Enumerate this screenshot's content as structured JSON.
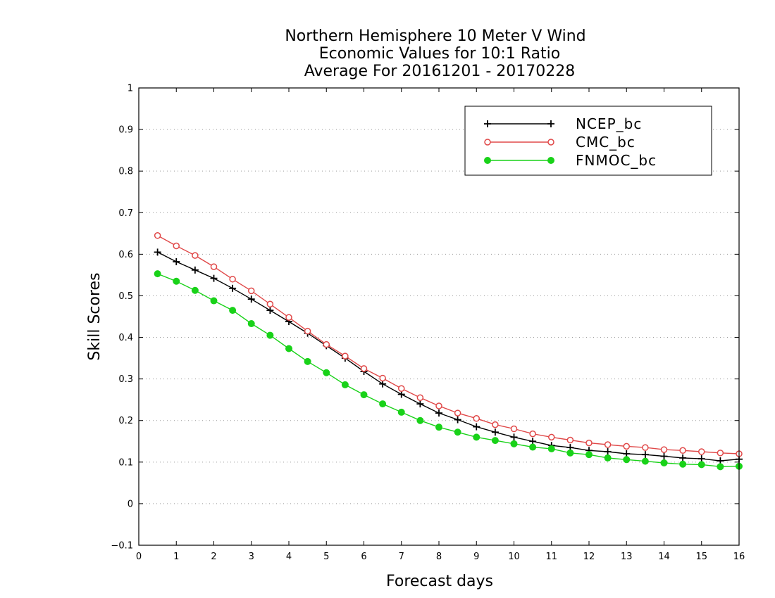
{
  "chart_data": {
    "type": "line",
    "title": [
      "Northern Hemisphere 10 Meter V Wind",
      "Economic Values for 10:1 Ratio",
      "Average For 20161201 - 20170228"
    ],
    "xlabel": "Forecast days",
    "ylabel": "Skill Scores",
    "xlim": [
      0,
      16
    ],
    "ylim": [
      -0.1,
      1
    ],
    "xticks": [
      0,
      1,
      2,
      3,
      4,
      5,
      6,
      7,
      8,
      9,
      10,
      11,
      12,
      13,
      14,
      15,
      16
    ],
    "yticks": [
      -0.1,
      0,
      0.1,
      0.2,
      0.3,
      0.4,
      0.5,
      0.6,
      0.7,
      0.8,
      0.9,
      1
    ],
    "ytick_labels": [
      "−0.1",
      "0",
      "0.1",
      "0.2",
      "0.3",
      "0.4",
      "0.5",
      "0.6",
      "0.7",
      "0.8",
      "0.9",
      "1"
    ],
    "grid": true,
    "legend_position": "top-right",
    "x": [
      0.5,
      1,
      1.5,
      2,
      2.5,
      3,
      3.5,
      4,
      4.5,
      5,
      5.5,
      6,
      6.5,
      7,
      7.5,
      8,
      8.5,
      9,
      9.5,
      10,
      10.5,
      11,
      11.5,
      12,
      12.5,
      13,
      13.5,
      14,
      14.5,
      15,
      15.5,
      16
    ],
    "series": [
      {
        "name": "NCEP_bc",
        "color": "#000000",
        "marker": "plus",
        "values": [
          0.605,
          0.582,
          0.562,
          0.542,
          0.518,
          0.492,
          0.465,
          0.438,
          0.41,
          0.38,
          0.35,
          0.318,
          0.288,
          0.263,
          0.24,
          0.218,
          0.202,
          0.185,
          0.172,
          0.16,
          0.15,
          0.14,
          0.135,
          0.128,
          0.125,
          0.12,
          0.118,
          0.114,
          0.11,
          0.108,
          0.103,
          0.107
        ]
      },
      {
        "name": "CMC_bc",
        "color": "#e04848",
        "marker": "open-circle",
        "values": [
          0.645,
          0.62,
          0.597,
          0.57,
          0.54,
          0.512,
          0.48,
          0.448,
          0.415,
          0.383,
          0.355,
          0.325,
          0.302,
          0.277,
          0.255,
          0.235,
          0.218,
          0.205,
          0.19,
          0.18,
          0.168,
          0.16,
          0.153,
          0.146,
          0.142,
          0.138,
          0.135,
          0.13,
          0.128,
          0.125,
          0.122,
          0.12
        ]
      },
      {
        "name": "FNMOC_bc",
        "color": "#19d219",
        "marker": "filled-circle",
        "values": [
          0.553,
          0.535,
          0.513,
          0.488,
          0.465,
          0.433,
          0.405,
          0.373,
          0.342,
          0.315,
          0.286,
          0.262,
          0.24,
          0.22,
          0.2,
          0.184,
          0.172,
          0.16,
          0.152,
          0.144,
          0.136,
          0.132,
          0.122,
          0.118,
          0.11,
          0.106,
          0.102,
          0.098,
          0.095,
          0.094,
          0.089,
          0.09
        ]
      }
    ]
  }
}
